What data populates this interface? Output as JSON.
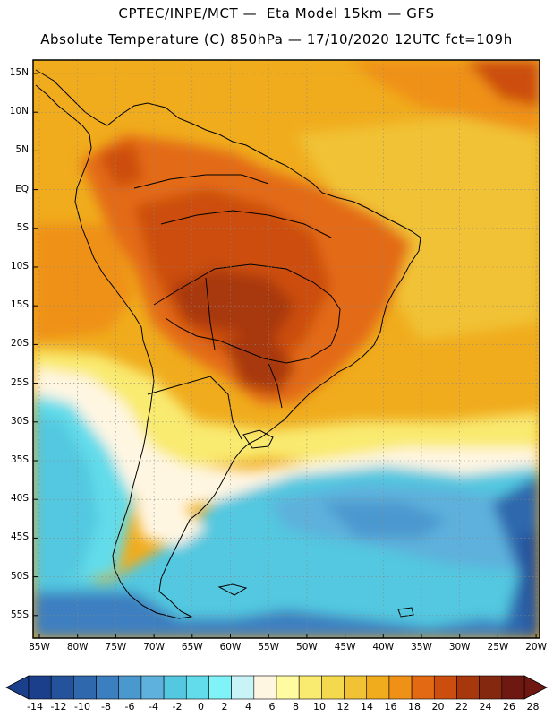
{
  "header": {
    "line1": "CPTEC/INPE/MCT —  Eta Model 15km — GFS",
    "line2": "Absolute Temperature (C) 850hPa — 17/10/2020 12UTC fct=109h"
  },
  "map": {
    "lat_labels": [
      "15N",
      "10N",
      "5N",
      "EQ",
      "5S",
      "10S",
      "15S",
      "20S",
      "25S",
      "30S",
      "35S",
      "40S",
      "45S",
      "50S",
      "55S"
    ],
    "lon_labels": [
      "85W",
      "80W",
      "75W",
      "70W",
      "65W",
      "60W",
      "55W",
      "50W",
      "45W",
      "40W",
      "35W",
      "30W",
      "25W",
      "20W"
    ]
  },
  "colorbar": {
    "labels": [
      "-14",
      "-12",
      "-10",
      "-8",
      "-6",
      "-4",
      "-2",
      "0",
      "2",
      "4",
      "6",
      "8",
      "10",
      "12",
      "14",
      "16",
      "18",
      "20",
      "22",
      "24",
      "26",
      "28"
    ],
    "colors": [
      "#1b3f8b",
      "#25539b",
      "#2f68ad",
      "#3c7fc0",
      "#4b98cf",
      "#5db1dc",
      "#53c8e0",
      "#62dcea",
      "#7ff3f8",
      "#c8f4f8",
      "#fff6e2",
      "#fffba0",
      "#f9ea70",
      "#f4d94f",
      "#f1c234",
      "#f0ac1d",
      "#ef9116",
      "#e36a12",
      "#cc4e0f",
      "#a8370c",
      "#852810",
      "#6e1812"
    ]
  }
}
